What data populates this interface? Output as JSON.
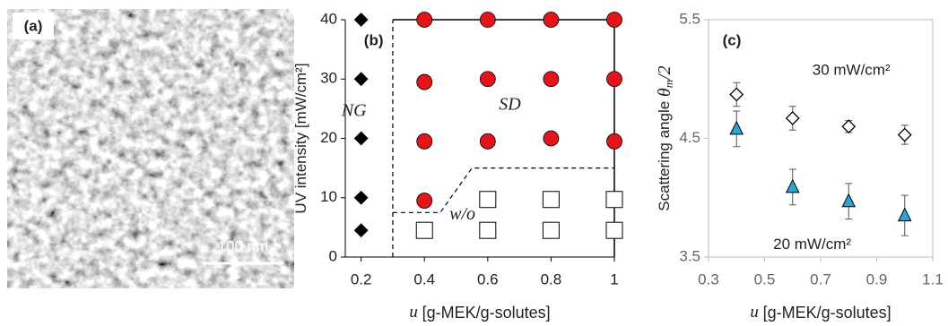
{
  "chart_data": [
    {
      "type": "image",
      "panel_label": "(a)",
      "scale_bar_label": "100 nm"
    },
    {
      "type": "scatter",
      "panel_label": "(b)",
      "ylabel": "UV intensity [mW/cm²]",
      "xlabel_var": "u",
      "xlabel": "[g-MEK/g-solutes]",
      "xlim": [
        0.15,
        1.0
      ],
      "xticks": [
        0.2,
        0.4,
        0.6,
        0.8,
        1
      ],
      "ylim": [
        0,
        40
      ],
      "yticks": [
        0,
        10,
        20,
        30,
        40
      ],
      "series": [
        {
          "name": "NG",
          "marker": "diamond",
          "color": "#000000",
          "x": [
            0.2,
            0.2,
            0.2,
            0.2,
            0.2
          ],
          "values": [
            40,
            30,
            20,
            10,
            4.5
          ]
        },
        {
          "name": "SD",
          "marker": "circle",
          "color": "#e3151a",
          "x": [
            0.4,
            0.6,
            0.8,
            1.0,
            0.4,
            0.6,
            0.8,
            1.0,
            0.4,
            0.6,
            0.8,
            1.0,
            0.4
          ],
          "values": [
            40,
            40,
            40,
            40,
            29.5,
            30,
            30,
            30,
            19.5,
            19.5,
            20,
            19.5,
            9.5
          ]
        },
        {
          "name": "w/o",
          "marker": "square",
          "color": "#ffffff",
          "x": [
            0.4,
            0.6,
            0.8,
            1.0,
            0.6,
            0.8,
            1.0
          ],
          "values": [
            4.5,
            4.5,
            4.5,
            4.5,
            9.7,
            9.7,
            9.7
          ]
        }
      ],
      "boundaries": [
        {
          "style": "dashed",
          "x": [
            0.3,
            0.3
          ],
          "y": [
            0,
            40
          ]
        },
        {
          "style": "dashed",
          "x": [
            0.3,
            0.45,
            0.55,
            1.0
          ],
          "y": [
            7.5,
            7.5,
            15,
            15
          ]
        },
        {
          "style": "solid",
          "x": [
            0.3,
            1.0,
            1.0
          ],
          "y": [
            40,
            40,
            0
          ]
        }
      ]
    },
    {
      "type": "errorbar",
      "panel_label": "(c)",
      "ylabel": "Scattering angle",
      "ylabel_symbol": "θ",
      "ylabel_subscript": "m",
      "ylabel_suffix": "/2",
      "xlabel_var": "u",
      "xlabel": "[g-MEK/g-solutes]",
      "xlim": [
        0.3,
        1.1
      ],
      "xticks": [
        0.3,
        0.5,
        0.7,
        0.9,
        1.1
      ],
      "ylim": [
        3.5,
        5.5
      ],
      "yticks": [
        3.5,
        4.5,
        5.5
      ],
      "series": [
        {
          "name": "30 mW/cm²",
          "marker": "diamond",
          "color": "#ffffff",
          "x": [
            0.4,
            0.6,
            0.8,
            1.0
          ],
          "values": [
            4.87,
            4.67,
            4.6,
            4.53
          ],
          "errors": [
            0.1,
            0.1,
            0.05,
            0.08
          ]
        },
        {
          "name": "20 mW/cm²",
          "marker": "triangle",
          "color": "#2aa7d8",
          "x": [
            0.4,
            0.6,
            0.8,
            1.0
          ],
          "values": [
            4.58,
            4.09,
            3.97,
            3.85
          ],
          "errors": [
            0.15,
            0.15,
            0.15,
            0.17
          ]
        }
      ]
    }
  ]
}
